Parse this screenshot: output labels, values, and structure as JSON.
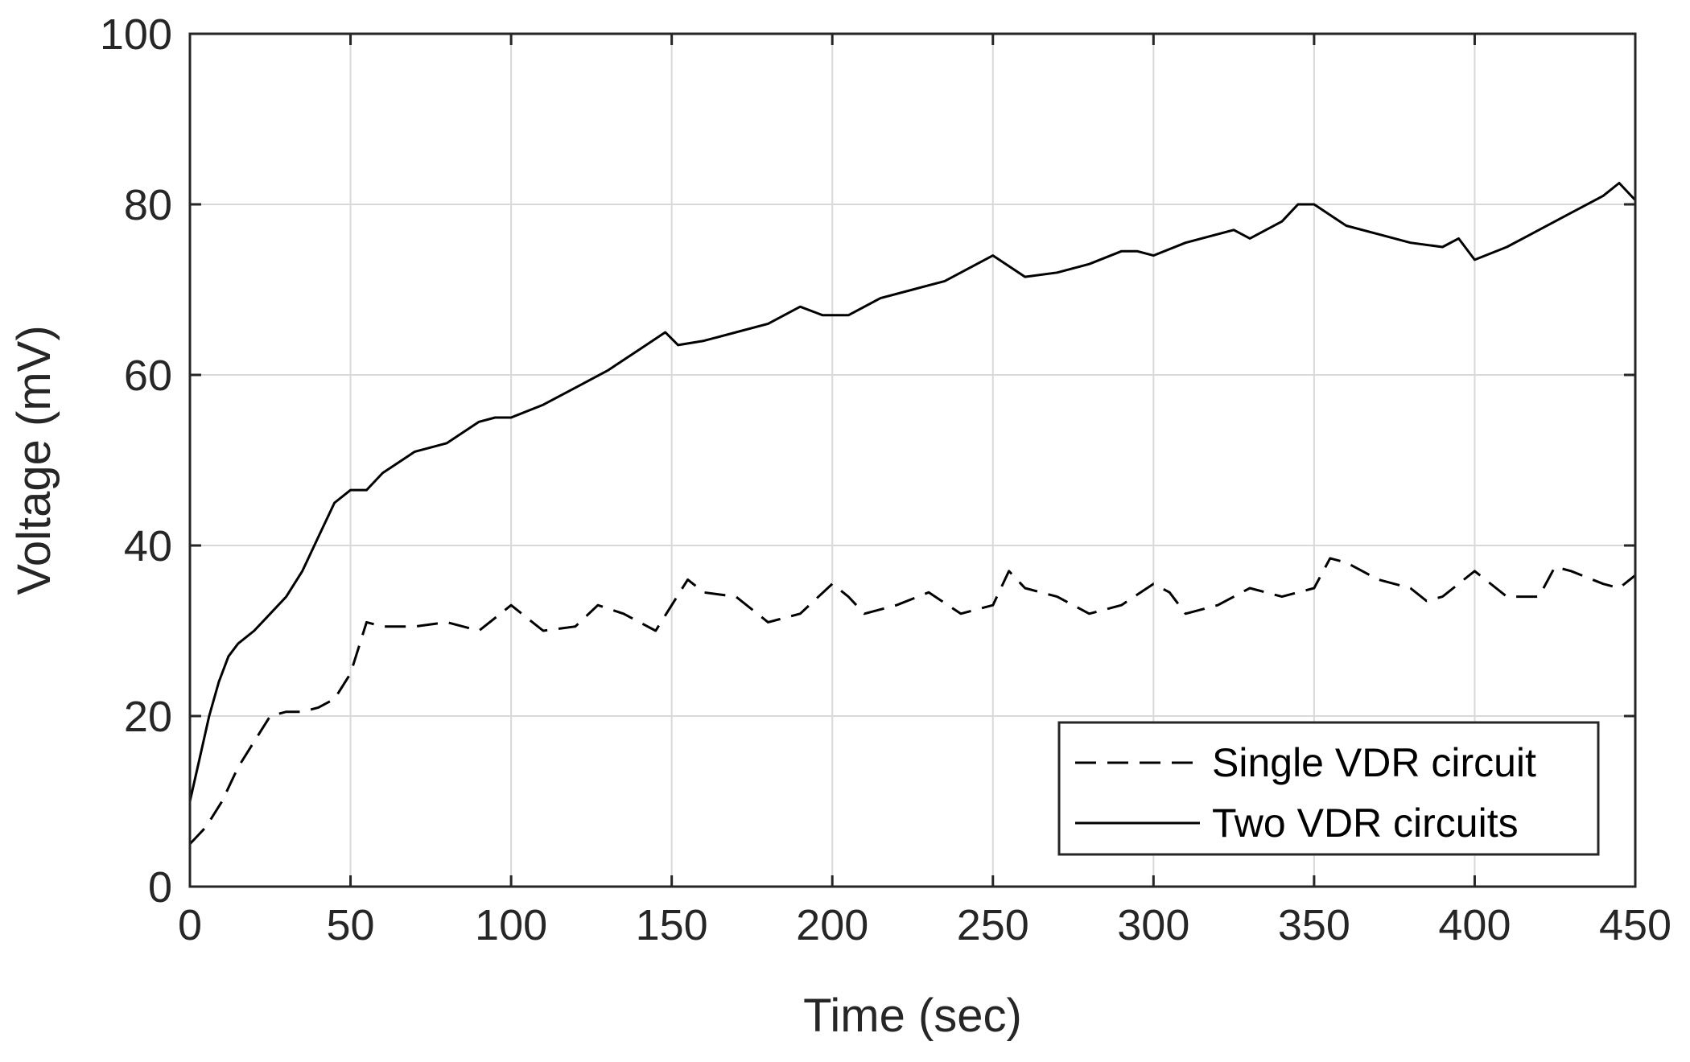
{
  "chart_data": {
    "type": "line",
    "title": "",
    "xlabel": "Time (sec)",
    "ylabel": "Voltage (mV)",
    "xlim": [
      0,
      450
    ],
    "ylim": [
      0,
      100
    ],
    "xticks": [
      0,
      50,
      100,
      150,
      200,
      250,
      300,
      350,
      400,
      450
    ],
    "yticks": [
      0,
      20,
      40,
      60,
      80,
      100
    ],
    "grid": true,
    "legend_position": "bottom-right",
    "series": [
      {
        "name": "Single VDR circuit",
        "style": "dashed",
        "color": "#000000",
        "x": [
          0,
          5,
          10,
          15,
          20,
          25,
          30,
          35,
          40,
          45,
          50,
          55,
          60,
          70,
          80,
          90,
          100,
          110,
          120,
          127,
          135,
          145,
          155,
          160,
          170,
          180,
          190,
          200,
          205,
          210,
          220,
          230,
          240,
          250,
          255,
          260,
          270,
          280,
          290,
          300,
          305,
          310,
          320,
          330,
          340,
          350,
          355,
          360,
          370,
          380,
          385,
          390,
          400,
          410,
          420,
          425,
          430,
          440,
          445,
          450
        ],
        "y": [
          5,
          7,
          10,
          14,
          17,
          20,
          20.5,
          20.5,
          21,
          22,
          25,
          31,
          30.5,
          30.5,
          31,
          30,
          33,
          30,
          30.5,
          33,
          32,
          30,
          36,
          34.5,
          34,
          31,
          32,
          35.5,
          34,
          32,
          33,
          34.5,
          32,
          33,
          37,
          35,
          34,
          32,
          33,
          35.5,
          34.5,
          32,
          33,
          35,
          34,
          35,
          38.5,
          38,
          36,
          35,
          33.5,
          34,
          37,
          34,
          34,
          37.5,
          37,
          35.5,
          35,
          36.5
        ]
      },
      {
        "name": "Two VDR circuits",
        "style": "solid",
        "color": "#000000",
        "x": [
          0,
          3,
          6,
          9,
          12,
          15,
          20,
          25,
          30,
          35,
          40,
          45,
          50,
          55,
          60,
          70,
          80,
          90,
          95,
          100,
          110,
          120,
          130,
          140,
          148,
          152,
          160,
          170,
          180,
          190,
          197,
          205,
          215,
          225,
          235,
          245,
          250,
          260,
          270,
          280,
          290,
          295,
          300,
          310,
          320,
          325,
          330,
          340,
          345,
          350,
          360,
          370,
          380,
          390,
          395,
          400,
          410,
          420,
          430,
          440,
          445,
          450
        ],
        "y": [
          10,
          15,
          20,
          24,
          27,
          28.5,
          30,
          32,
          34,
          37,
          41,
          45,
          46.5,
          46.5,
          48.5,
          51,
          52,
          54.5,
          55,
          55,
          56.5,
          58.5,
          60.5,
          63,
          65,
          63.5,
          64,
          65,
          66,
          68,
          67,
          67,
          69,
          70,
          71,
          73,
          74,
          71.5,
          72,
          73,
          74.5,
          74.5,
          74,
          75.5,
          76.5,
          77,
          76,
          78,
          80,
          80,
          77.5,
          76.5,
          75.5,
          75,
          76,
          73.5,
          75,
          77,
          79,
          81,
          82.5,
          80.5
        ]
      }
    ]
  }
}
